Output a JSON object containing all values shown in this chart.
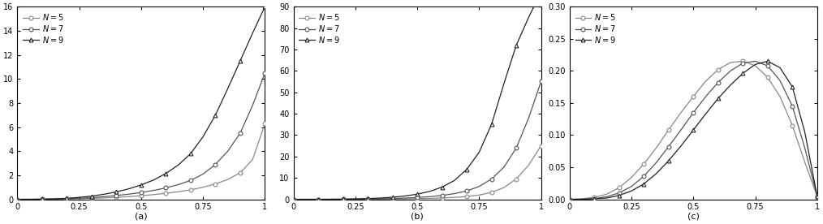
{
  "subplots": [
    {
      "label": "(a)",
      "ylim": [
        0,
        16
      ],
      "yticks": [
        0,
        2,
        4,
        6,
        8,
        10,
        12,
        14,
        16
      ],
      "xticks": [
        0,
        0.25,
        0.5,
        0.75,
        1.0
      ],
      "xticklabels": [
        "0",
        "0.25",
        "0.5",
        "0.75",
        "1"
      ]
    },
    {
      "label": "(b)",
      "ylim": [
        0,
        90
      ],
      "yticks": [
        0,
        10,
        20,
        30,
        40,
        50,
        60,
        70,
        80,
        90
      ],
      "xticks": [
        0,
        0.25,
        0.5,
        0.75,
        1.0
      ],
      "xticklabels": [
        "0",
        "0.25",
        "0.5",
        "0.75",
        "1"
      ]
    },
    {
      "label": "(c)",
      "ylim": [
        0,
        0.3
      ],
      "yticks": [
        0,
        0.05,
        0.1,
        0.15,
        0.2,
        0.25,
        0.3
      ],
      "xticks": [
        0,
        0.25,
        0.5,
        0.75,
        1.0
      ],
      "xticklabels": [
        "0",
        "0.25",
        "0.5",
        "0.75",
        "1"
      ]
    }
  ],
  "N_values": [
    5,
    7,
    9
  ],
  "legend_labels": [
    "N = 5",
    "N = 7",
    "N = 9"
  ],
  "markers": [
    "o",
    "o",
    "^"
  ],
  "line_colors": [
    "#888888",
    "#555555",
    "#222222"
  ],
  "x_points": [
    0.0,
    0.05,
    0.1,
    0.15,
    0.2,
    0.25,
    0.3,
    0.35,
    0.4,
    0.45,
    0.5,
    0.55,
    0.6,
    0.65,
    0.7,
    0.75,
    0.8,
    0.85,
    0.9,
    0.95,
    1.0
  ],
  "subplot_a": {
    "5": [
      0.0,
      0.001,
      0.005,
      0.012,
      0.025,
      0.045,
      0.075,
      0.115,
      0.165,
      0.225,
      0.3,
      0.39,
      0.5,
      0.63,
      0.79,
      1.0,
      1.28,
      1.65,
      2.2,
      3.3,
      6.3
    ],
    "7": [
      0.0,
      0.002,
      0.008,
      0.022,
      0.05,
      0.09,
      0.145,
      0.22,
      0.315,
      0.43,
      0.57,
      0.74,
      0.95,
      1.22,
      1.57,
      2.1,
      2.9,
      4.0,
      5.5,
      7.8,
      10.5
    ],
    "9": [
      0.0,
      0.003,
      0.015,
      0.04,
      0.085,
      0.16,
      0.27,
      0.42,
      0.62,
      0.87,
      1.2,
      1.6,
      2.15,
      2.85,
      3.8,
      5.2,
      7.0,
      9.2,
      11.5,
      13.8,
      16.0
    ]
  },
  "subplot_b": {
    "5": [
      0.0,
      0.0,
      0.002,
      0.006,
      0.015,
      0.03,
      0.055,
      0.09,
      0.14,
      0.21,
      0.3,
      0.43,
      0.62,
      0.9,
      1.3,
      2.0,
      3.2,
      5.5,
      9.5,
      16.0,
      25.0
    ],
    "7": [
      0.0,
      0.001,
      0.004,
      0.015,
      0.04,
      0.08,
      0.145,
      0.24,
      0.38,
      0.58,
      0.86,
      1.25,
      1.8,
      2.65,
      3.9,
      6.0,
      9.5,
      15.0,
      24.0,
      38.0,
      55.0
    ],
    "9": [
      0.0,
      0.002,
      0.01,
      0.035,
      0.09,
      0.19,
      0.35,
      0.6,
      0.98,
      1.55,
      2.4,
      3.7,
      5.7,
      8.8,
      14.0,
      22.0,
      35.0,
      54.0,
      72.0,
      85.0,
      97.0
    ]
  },
  "subplot_c": {
    "5": [
      0.0,
      0.001,
      0.003,
      0.008,
      0.018,
      0.034,
      0.055,
      0.08,
      0.108,
      0.135,
      0.16,
      0.184,
      0.202,
      0.213,
      0.215,
      0.208,
      0.19,
      0.16,
      0.115,
      0.058,
      0.005
    ],
    "7": [
      0.0,
      0.0,
      0.001,
      0.004,
      0.01,
      0.02,
      0.036,
      0.057,
      0.082,
      0.108,
      0.135,
      0.16,
      0.182,
      0.2,
      0.212,
      0.215,
      0.208,
      0.185,
      0.145,
      0.08,
      0.005
    ],
    "9": [
      0.0,
      0.0,
      0.001,
      0.002,
      0.006,
      0.013,
      0.024,
      0.04,
      0.06,
      0.083,
      0.108,
      0.133,
      0.157,
      0.178,
      0.196,
      0.21,
      0.215,
      0.205,
      0.175,
      0.105,
      0.005
    ]
  }
}
